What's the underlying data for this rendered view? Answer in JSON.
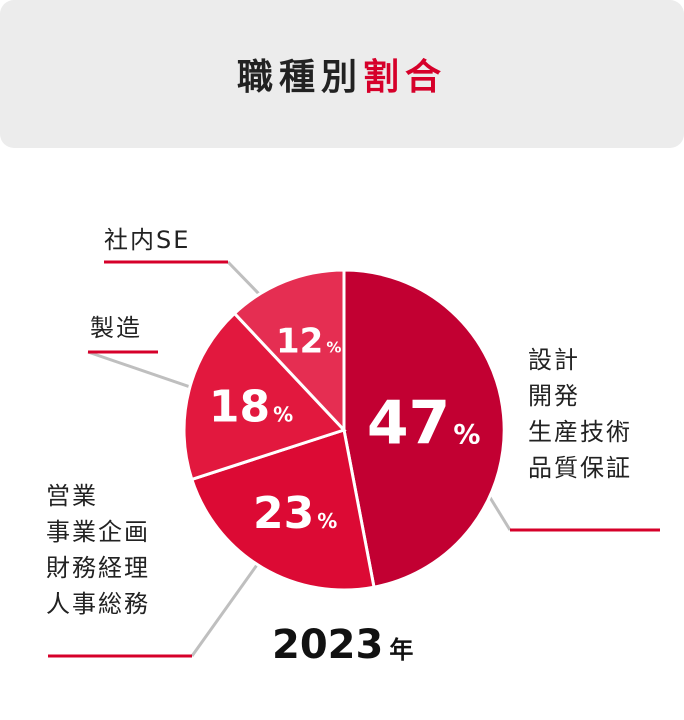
{
  "header": {
    "title_main": "職種別",
    "title_accent": "割合"
  },
  "year": {
    "value": "2023",
    "unit": "年"
  },
  "colors": {
    "accent": "#d6002a",
    "slices": [
      "#c20032",
      "#dc0a34",
      "#e2183e",
      "#e52e52"
    ],
    "leader": "#bfbfbf"
  },
  "chart_data": {
    "type": "pie",
    "unit": "%",
    "slices": [
      {
        "label": [
          "設計",
          "開発",
          "生産技術",
          "品質保証"
        ],
        "value": 47
      },
      {
        "label": [
          "営業",
          "事業企画",
          "財務経理",
          "人事総務"
        ],
        "value": 23
      },
      {
        "label": [
          "製造"
        ],
        "value": 18
      },
      {
        "label": [
          "社内SE"
        ],
        "value": 12
      }
    ]
  }
}
